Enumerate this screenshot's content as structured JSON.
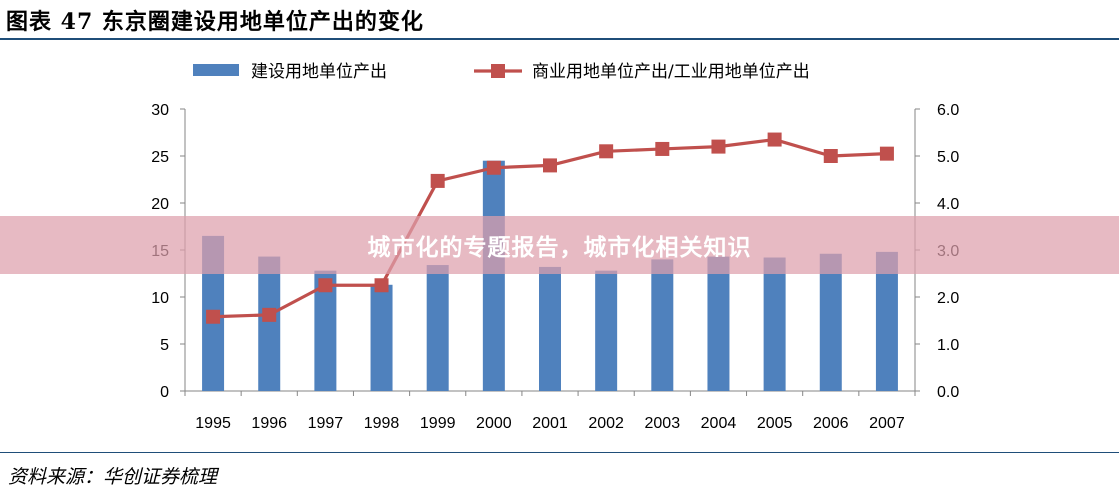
{
  "figure": {
    "title": "图表 47 东京圈建设用地单位产出的变化",
    "source": "资料来源：华创证券梳理"
  },
  "overlay": {
    "banner_text": "城市化的专题报告，城市化相关知识"
  },
  "chart_data": {
    "type": "bar",
    "categories": [
      "1995",
      "1996",
      "1997",
      "1998",
      "1999",
      "2000",
      "2001",
      "2002",
      "2003",
      "2004",
      "2005",
      "2006",
      "2007"
    ],
    "series": [
      {
        "name": "建设用地单位产出",
        "type": "bar",
        "axis": "left",
        "color": "#4f81bd",
        "values": [
          16.5,
          14.3,
          12.8,
          11.3,
          13.4,
          24.5,
          13.2,
          12.8,
          14.0,
          14.3,
          14.2,
          14.6,
          14.8
        ]
      },
      {
        "name": "商业用地单位产出/工业用地单位产出",
        "type": "line",
        "axis": "right",
        "color": "#c0504d",
        "values": [
          1.58,
          1.62,
          2.25,
          2.25,
          4.47,
          4.75,
          4.8,
          5.1,
          5.15,
          5.2,
          5.35,
          5.0,
          5.05
        ]
      }
    ],
    "y_left": {
      "ylim": [
        0,
        30
      ],
      "ticks": [
        "0",
        "5",
        "10",
        "15",
        "20",
        "25",
        "30"
      ]
    },
    "y_right": {
      "ylim": [
        0,
        6
      ],
      "ticks": [
        "0.0",
        "1.0",
        "2.0",
        "3.0",
        "4.0",
        "5.0",
        "6.0"
      ]
    },
    "grid": false,
    "legend_position": "top"
  }
}
